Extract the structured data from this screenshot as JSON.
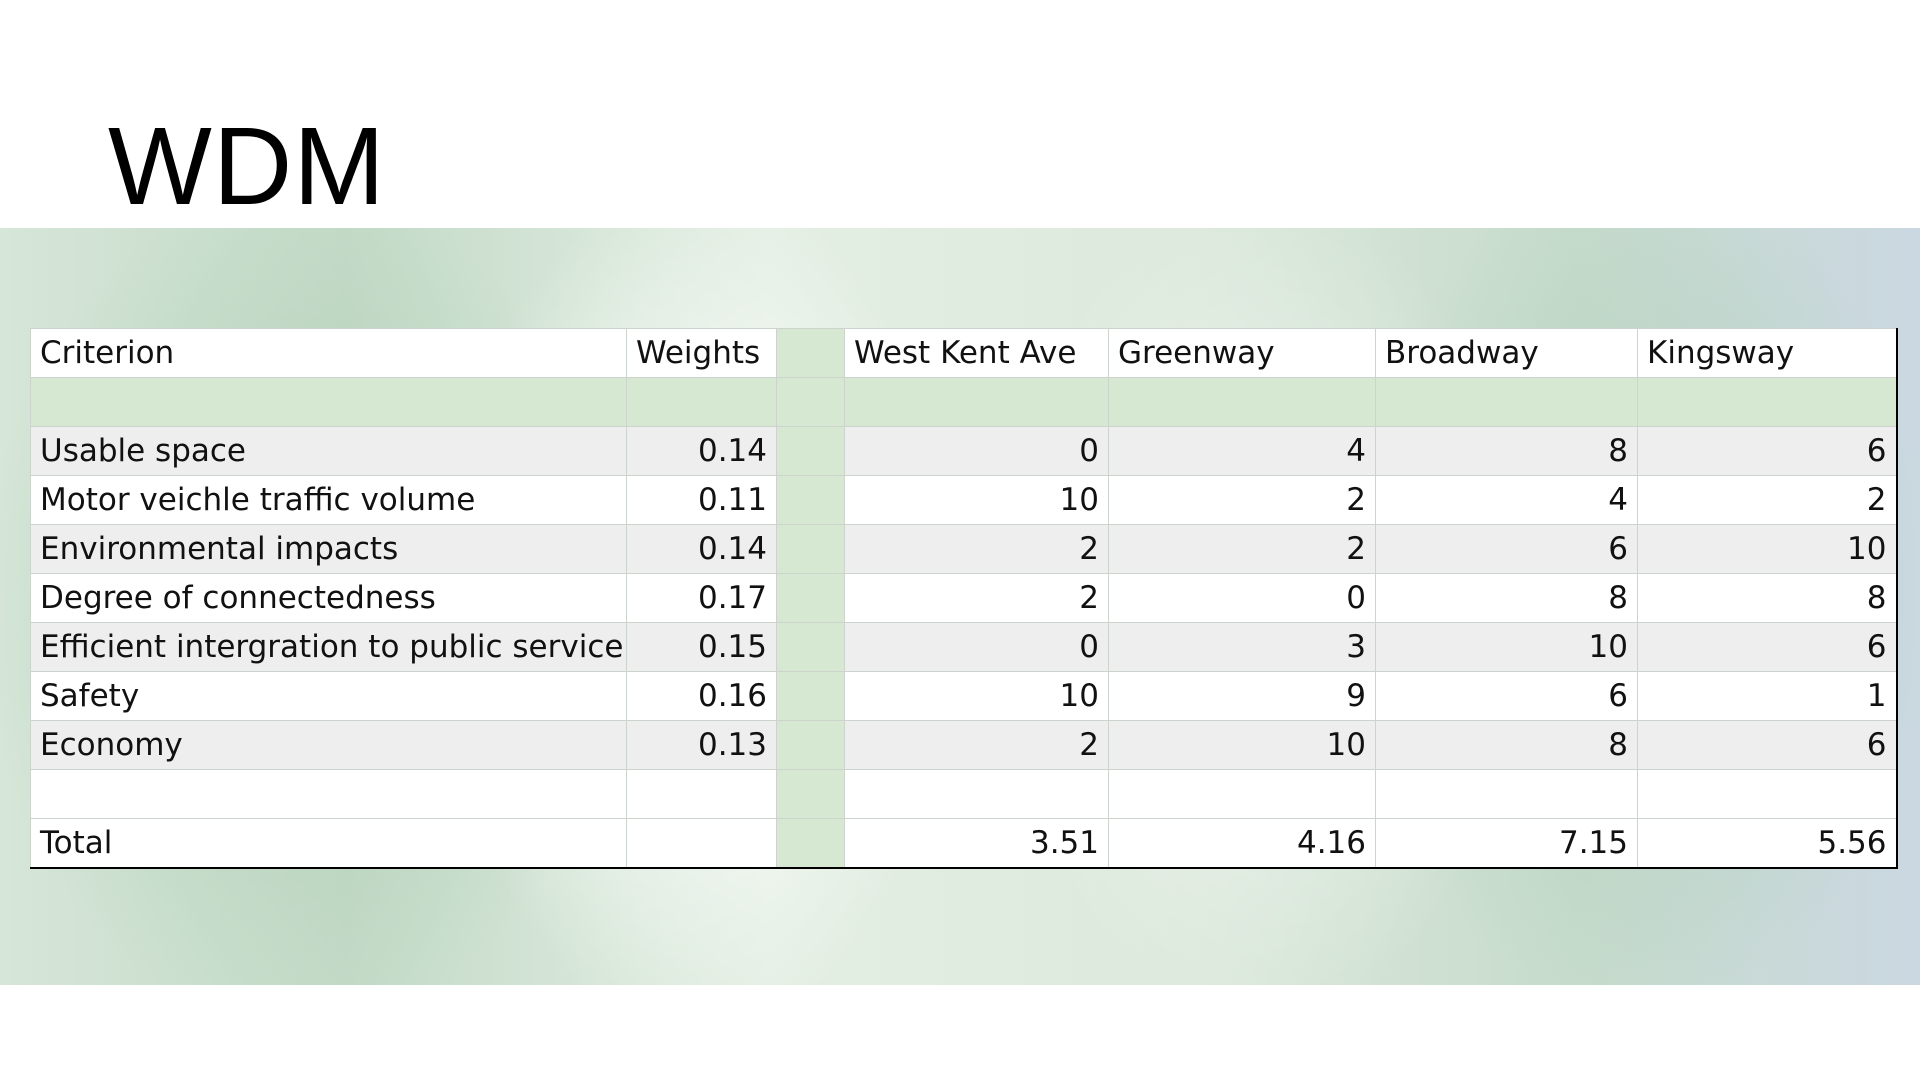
{
  "slide": {
    "title": "WDM"
  },
  "colors": {
    "header_band_green": "#d6e8d2",
    "row_grey": "#eeeeee",
    "row_white": "#ffffff"
  },
  "table": {
    "headers": {
      "criterion": "Criterion",
      "weights": "Weights",
      "options": [
        "West Kent Ave",
        "Greenway",
        "Broadway",
        "Kingsway"
      ]
    },
    "rows": [
      {
        "criterion": "Usable space",
        "weight": "0.14",
        "scores": [
          "0",
          "4",
          "8",
          "6"
        ]
      },
      {
        "criterion": "Motor veichle traffic volume",
        "weight": "0.11",
        "scores": [
          "10",
          "2",
          "4",
          "2"
        ]
      },
      {
        "criterion": "Environmental impacts",
        "weight": "0.14",
        "scores": [
          "2",
          "2",
          "6",
          "10"
        ]
      },
      {
        "criterion": "Degree of connectedness",
        "weight": "0.17",
        "scores": [
          "2",
          "0",
          "8",
          "8"
        ]
      },
      {
        "criterion": "Efficient intergration to public service",
        "weight": "0.15",
        "scores": [
          "0",
          "3",
          "10",
          "6"
        ]
      },
      {
        "criterion": "Safety",
        "weight": "0.16",
        "scores": [
          "10",
          "9",
          "6",
          "1"
        ]
      },
      {
        "criterion": "Economy",
        "weight": "0.13",
        "scores": [
          "2",
          "10",
          "8",
          "6"
        ]
      }
    ],
    "total": {
      "label": "Total",
      "values": [
        "3.51",
        "4.16",
        "7.15",
        "5.56"
      ]
    }
  }
}
